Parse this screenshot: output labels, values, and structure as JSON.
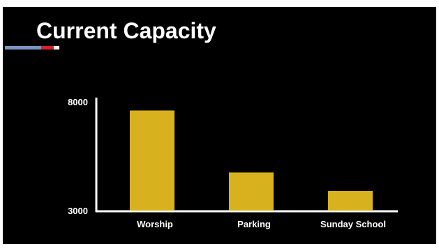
{
  "slide": {
    "title": "Current Capacity",
    "background": "#000000",
    "accent_colors": {
      "blue": "#7b95c2",
      "red": "#d9222a",
      "white": "#ffffff"
    }
  },
  "chart_data": {
    "type": "bar",
    "title": "",
    "xlabel": "",
    "ylabel": "",
    "categories": [
      "Worship",
      "Parking",
      "Sunday School"
    ],
    "values": [
      7600,
      4750,
      3900
    ],
    "ylim": [
      3000,
      8000
    ],
    "y_ticks": [
      "3000",
      "8000"
    ],
    "grid": false,
    "legend": "none",
    "bar_color": "#d8b21e",
    "axis_color": "#ffffff",
    "label_color": "#ffffff"
  }
}
